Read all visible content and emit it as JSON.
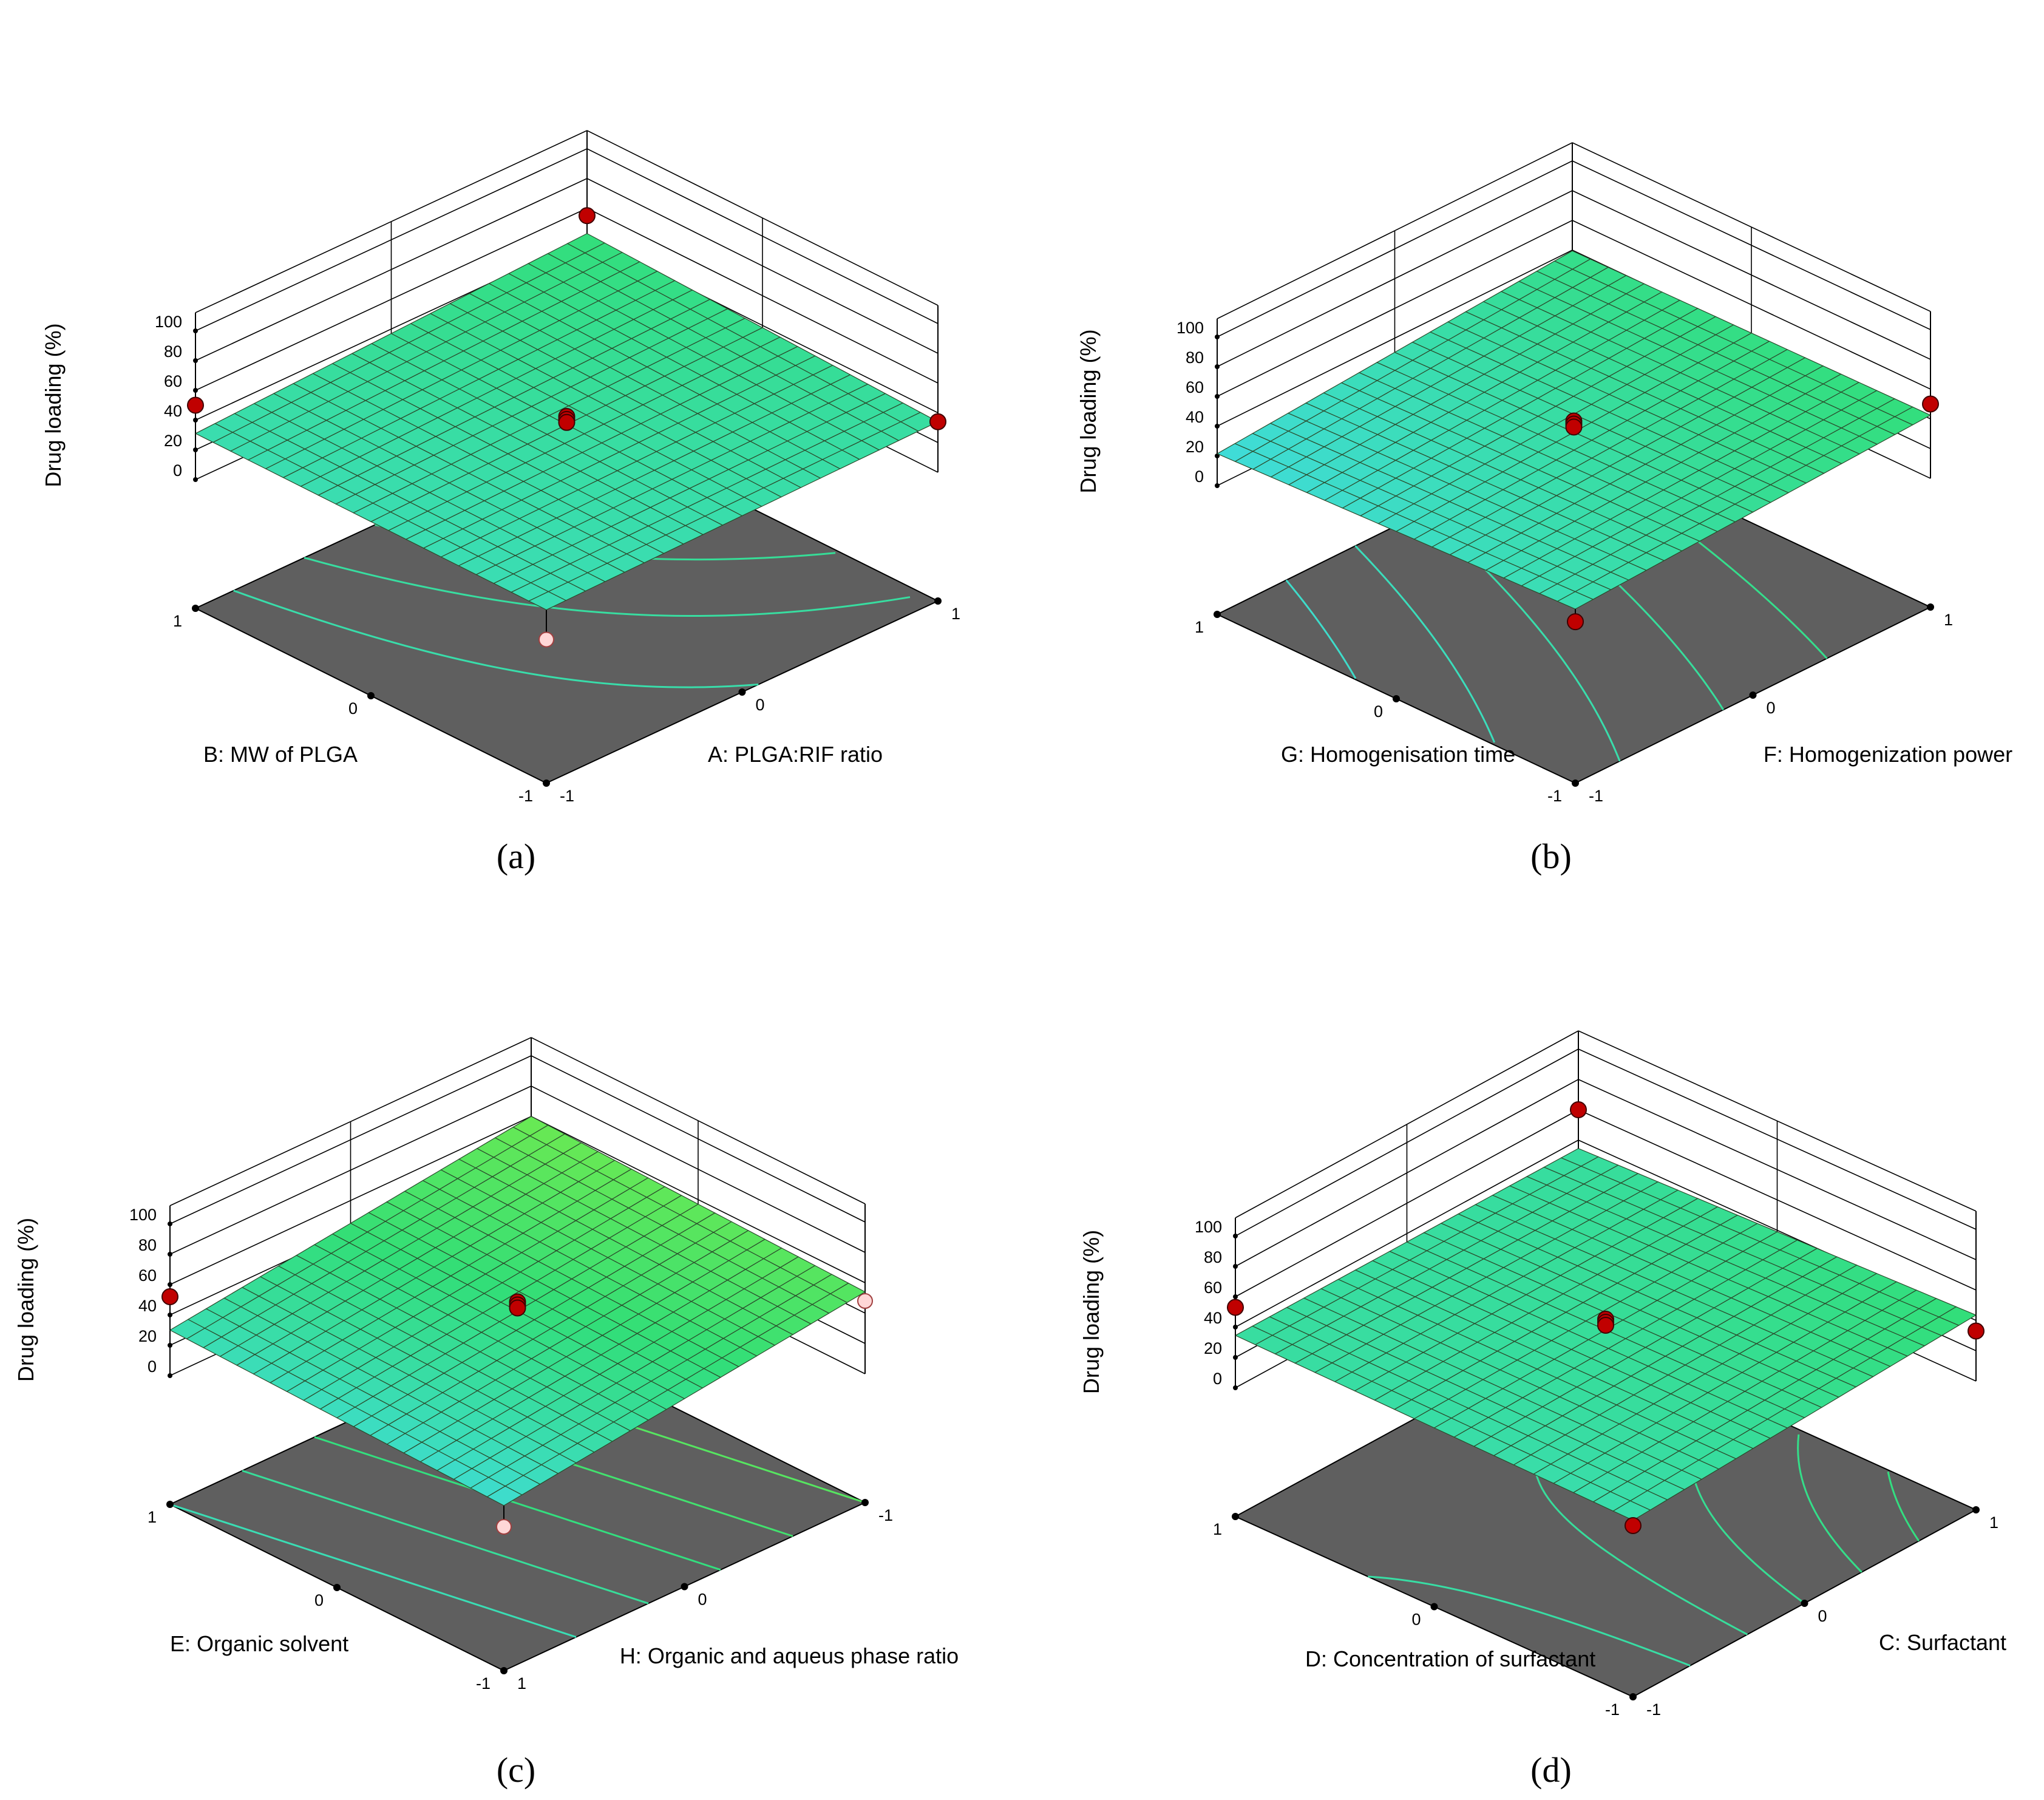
{
  "figure": {
    "panels": [
      "a",
      "b",
      "c",
      "d"
    ]
  },
  "chart_data": [
    {
      "type": "surface3d",
      "panel": "a",
      "caption": "(a)",
      "zlabel": "Drug loading (%)",
      "zticks": [
        "0",
        "20",
        "40",
        "60",
        "80",
        "100"
      ],
      "zlim": [
        0,
        100
      ],
      "x_axis": {
        "label": "A: PLGA:RIF ratio",
        "ticks": [
          "-1",
          "0",
          "1"
        ]
      },
      "y_axis": {
        "label": "B: MW of PLGA",
        "ticks": [
          "-1",
          "0",
          "1"
        ]
      },
      "surface": {
        "b0": 34.5,
        "bx": 4.0,
        "by": 2.5,
        "bxy": 2.0
      },
      "points": [
        {
          "x": -1,
          "y": 1,
          "z": 50,
          "above": true
        },
        {
          "x": 1,
          "y": 1,
          "z": 55,
          "above": true
        },
        {
          "x": 0,
          "y": 0,
          "z": 40,
          "above": true
        },
        {
          "x": 0,
          "y": 0,
          "z": 38,
          "above": true
        },
        {
          "x": 0,
          "y": 0,
          "z": 36,
          "above": true
        },
        {
          "x": 1,
          "y": -1,
          "z": 34,
          "above": true
        },
        {
          "x": -1,
          "y": -1,
          "z": 10,
          "above": false
        }
      ]
    },
    {
      "type": "surface3d",
      "panel": "b",
      "caption": "(b)",
      "zlabel": "Drug loading (%)",
      "zticks": [
        "0",
        "20",
        "40",
        "60",
        "80",
        "100"
      ],
      "zlim": [
        0,
        100
      ],
      "x_axis": {
        "label": "F: Homogenization  power",
        "ticks": [
          "-1",
          "0",
          "1"
        ]
      },
      "y_axis": {
        "label": "G: Homogenisation time",
        "ticks": [
          "-1",
          "0",
          "1"
        ]
      },
      "surface": {
        "b0": 33.5,
        "bx": 7.5,
        "by": -3.0,
        "bxy": 1.5
      },
      "points": [
        {
          "x": 0,
          "y": 0,
          "z": 41,
          "above": true
        },
        {
          "x": 0,
          "y": 0,
          "z": 39,
          "above": true
        },
        {
          "x": 0,
          "y": 0,
          "z": 37,
          "above": true
        },
        {
          "x": 1,
          "y": -1,
          "z": 50,
          "above": true
        },
        {
          "x": -1,
          "y": -1,
          "z": 22,
          "above": true
        }
      ]
    },
    {
      "type": "surface3d",
      "panel": "c",
      "caption": "(c)",
      "zlabel": "Drug loading (%)",
      "zticks": [
        "0",
        "20",
        "40",
        "60",
        "80",
        "100"
      ],
      "zlim": [
        0,
        100
      ],
      "x_axis": {
        "label": "H: Organic and aqueus phase ratio",
        "ticks": [
          "1",
          "0",
          "-1"
        ]
      },
      "y_axis": {
        "label": "E: Organic solvent",
        "ticks": [
          "-1",
          "0",
          "1"
        ]
      },
      "surface": {
        "b0": 42,
        "bx": -15,
        "by": 3,
        "bxy": 0
      },
      "points": [
        {
          "x": 0,
          "y": 0,
          "z": 48,
          "above": true
        },
        {
          "x": 0,
          "y": 0,
          "z": 46,
          "above": true
        },
        {
          "x": 0,
          "y": 0,
          "z": 44,
          "above": true
        },
        {
          "x": 1,
          "y": 1,
          "z": 52,
          "above": true
        },
        {
          "x": 1,
          "y": -1,
          "z": 10,
          "above": false
        },
        {
          "x": -1,
          "y": -1,
          "z": 48,
          "above": false
        }
      ]
    },
    {
      "type": "surface3d",
      "panel": "d",
      "caption": "(d)",
      "zlabel": "Drug loading (%)",
      "zticks": [
        "0",
        "20",
        "40",
        "60",
        "80",
        "100"
      ],
      "zlim": [
        0,
        100
      ],
      "x_axis": {
        "label": "C: Surfactant",
        "ticks": [
          "-1",
          "0",
          "1"
        ]
      },
      "y_axis": {
        "label": "D: Concentration of surfactant",
        "ticks": [
          "-1",
          "0",
          "1"
        ]
      },
      "surface": {
        "b0": 36,
        "bx": 3,
        "by": -1.5,
        "bxy": -3
      },
      "points": [
        {
          "x": 0,
          "y": 0,
          "z": 43,
          "above": true
        },
        {
          "x": 0,
          "y": 0,
          "z": 41,
          "above": true
        },
        {
          "x": 0,
          "y": 0,
          "z": 39,
          "above": true
        },
        {
          "x": -1,
          "y": 1,
          "z": 53,
          "above": true
        },
        {
          "x": 1,
          "y": 1,
          "z": 60,
          "above": true
        },
        {
          "x": -1,
          "y": -1,
          "z": 28,
          "above": true
        },
        {
          "x": 1,
          "y": -1,
          "z": 33,
          "above": true
        }
      ]
    }
  ]
}
